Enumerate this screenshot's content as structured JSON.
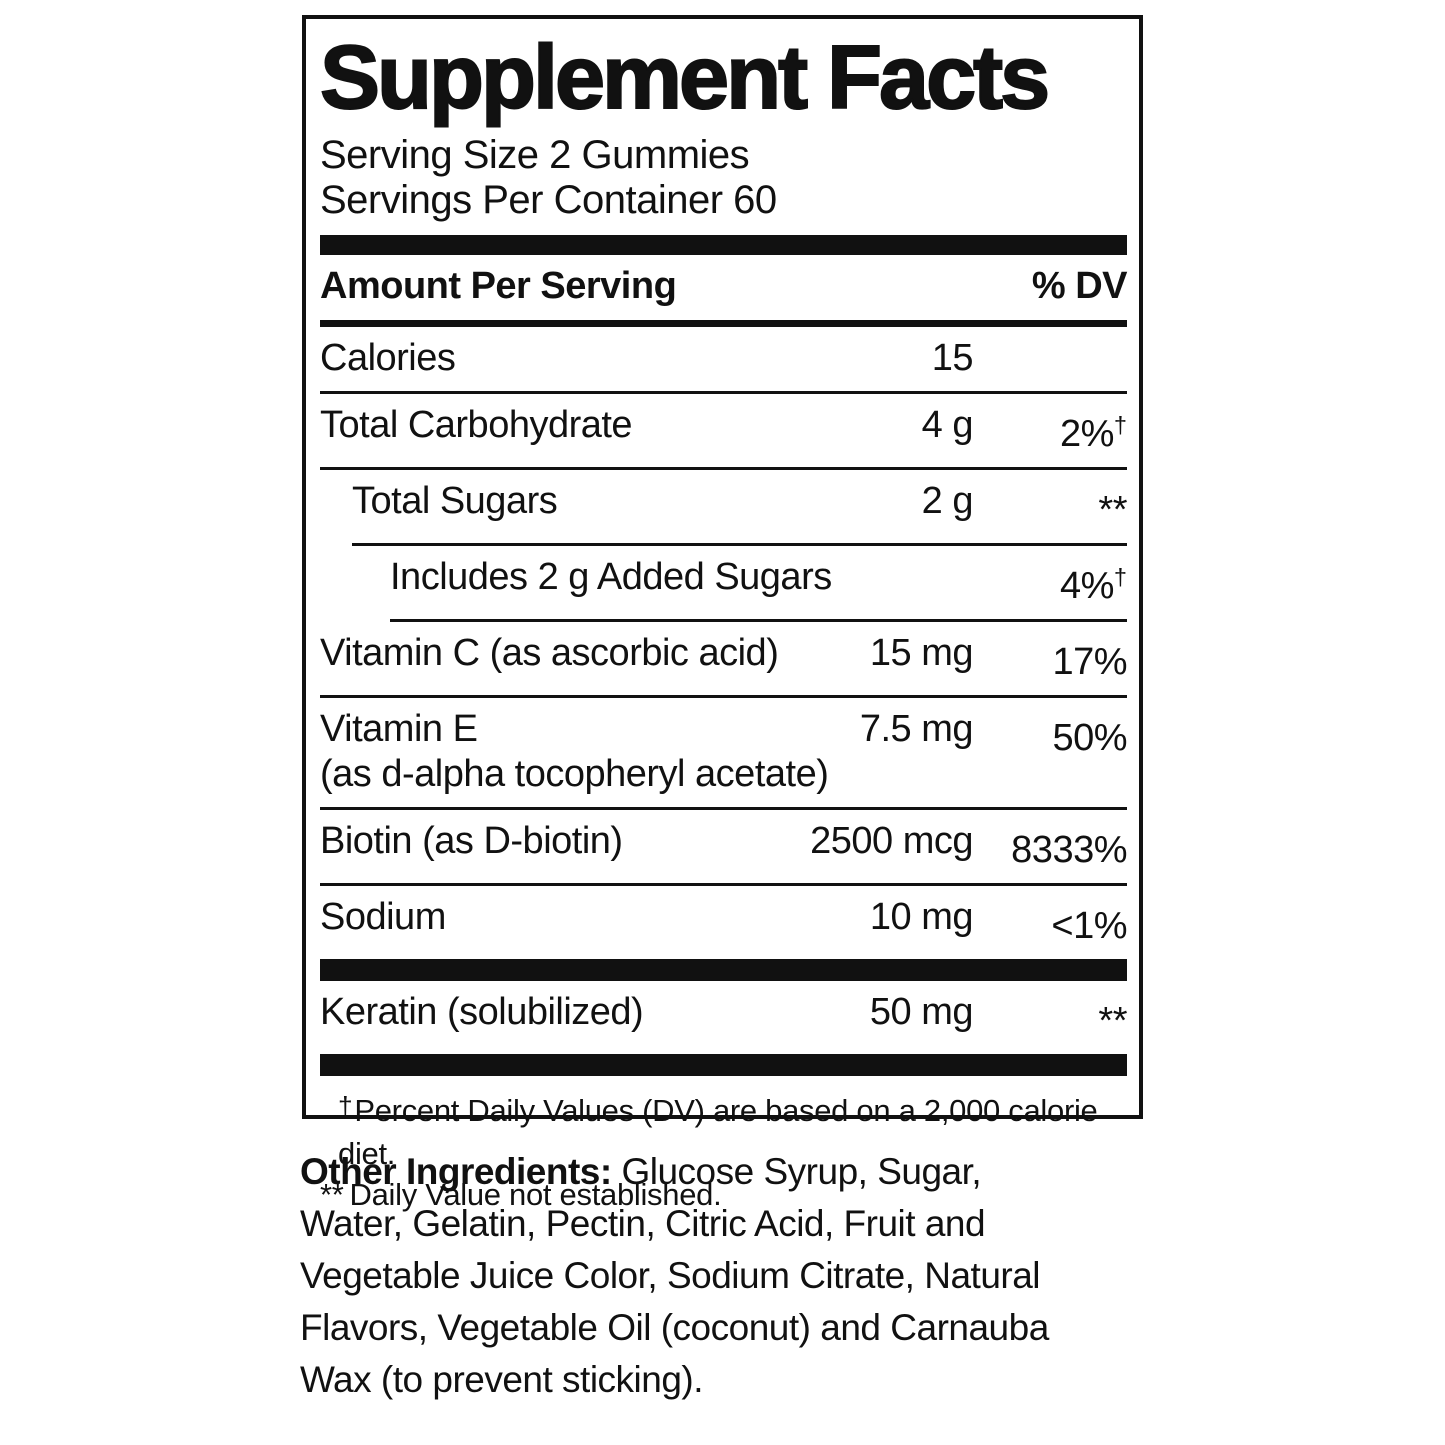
{
  "colors": {
    "ink": "#111111",
    "background": "#ffffff"
  },
  "panel": {
    "title": "Supplement Facts",
    "serving_size": "Serving Size 2 Gummies",
    "servings_per_container": "Servings Per Container 60",
    "header": {
      "amount_label": "Amount Per Serving",
      "dv_label": "% DV"
    },
    "rows": [
      {
        "label": "Calories",
        "amount": "15",
        "dv": "",
        "dv_sup": ""
      },
      {
        "label": "Total Carbohydrate",
        "amount": "4 g",
        "dv": "2%",
        "dv_sup": "†"
      },
      {
        "label": "Total Sugars",
        "amount": "2 g",
        "dv": "**",
        "dv_sup": ""
      },
      {
        "label": "Includes 2 g Added Sugars",
        "amount": "",
        "dv": "4%",
        "dv_sup": "†"
      },
      {
        "label": "Vitamin C (as ascorbic acid)",
        "amount": "15 mg",
        "dv": "17%",
        "dv_sup": ""
      },
      {
        "label": "Vitamin E",
        "label2": "(as d-alpha tocopheryl acetate)",
        "amount": "7.5 mg",
        "dv": "50%",
        "dv_sup": ""
      },
      {
        "label": "Biotin (as D-biotin)",
        "amount": "2500 mcg",
        "dv": "8333%",
        "dv_sup": ""
      },
      {
        "label": "Sodium",
        "amount": "10 mg",
        "dv": "<1%",
        "dv_sup": ""
      },
      {
        "label": "Keratin (solubilized)",
        "amount": "50 mg",
        "dv": "**",
        "dv_sup": ""
      }
    ],
    "footnotes": [
      {
        "symbol": "†",
        "text": "Percent Daily Values (DV) are based on a 2,000 calorie diet."
      },
      {
        "symbol": "**",
        "text": "Daily Value not established."
      }
    ]
  },
  "other_ingredients": {
    "heading": "Other Ingredients:",
    "line1_rest": " Glucose Syrup, Sugar,",
    "lines": [
      "Water, Gelatin, Pectin, Citric Acid, Fruit and",
      "Vegetable Juice Color, Sodium Citrate, Natural",
      "Flavors, Vegetable Oil (coconut) and Carnauba",
      "Wax (to prevent sticking)."
    ]
  }
}
